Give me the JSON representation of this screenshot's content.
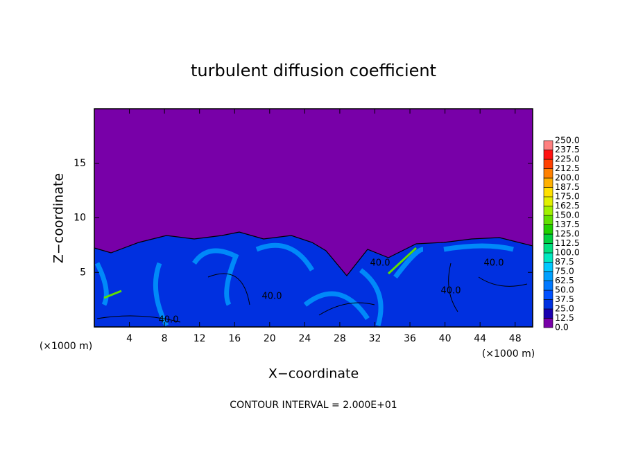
{
  "chart_data": {
    "type": "contour",
    "title": "turbulent diffusion coefficient",
    "x_label": "X−coordinate",
    "y_label": "Z−coordinate",
    "y_unit": "(×1000 m)",
    "x_unit": "(×1000 m)",
    "footnote": "CONTOUR INTERVAL = 2.000E+01",
    "contour_labels": [
      "40.0",
      "40.0",
      "40.0",
      "40.0",
      "40.0"
    ],
    "xlim": [
      0,
      50
    ],
    "xticks": [
      4,
      8,
      12,
      16,
      20,
      24,
      28,
      32,
      36,
      40,
      44,
      48
    ],
    "ylim": [
      0,
      20
    ],
    "yticks": [
      5,
      10,
      15
    ],
    "levels": [
      {
        "value": 0,
        "label": "0.0"
      },
      {
        "value": 12.5,
        "label": "12.5"
      },
      {
        "value": 25,
        "label": "25.0"
      },
      {
        "value": 37.5,
        "label": "37.5"
      },
      {
        "value": 50,
        "label": "50.0"
      },
      {
        "value": 62.5,
        "label": "62.5"
      },
      {
        "value": 75,
        "label": "75.0"
      },
      {
        "value": 87.5,
        "label": "87.5"
      },
      {
        "value": 100,
        "label": "100.0"
      },
      {
        "value": 112.5,
        "label": "112.5"
      },
      {
        "value": 125,
        "label": "125.0"
      },
      {
        "value": 137.5,
        "label": "137.5"
      },
      {
        "value": 150,
        "label": "150.0"
      },
      {
        "value": 162.5,
        "label": "162.5"
      },
      {
        "value": 175,
        "label": "175.0"
      },
      {
        "value": 187.5,
        "label": "187.5"
      },
      {
        "value": 200,
        "label": "200.0"
      },
      {
        "value": 212.5,
        "label": "212.5"
      },
      {
        "value": 225,
        "label": "225.0"
      },
      {
        "value": 237.5,
        "label": "237.5"
      },
      {
        "value": 250,
        "label": "250.0"
      }
    ],
    "colors": [
      "#7800a8",
      "#1a00b0",
      "#0030e0",
      "#0050ff",
      "#0078ff",
      "#00a0ff",
      "#00c8ff",
      "#00e8c0",
      "#00e080",
      "#00d040",
      "#20d000",
      "#60e000",
      "#a0f000",
      "#e0f000",
      "#ffe000",
      "#ffb000",
      "#ff8000",
      "#ff4000",
      "#ff1010",
      "#ff8080"
    ]
  }
}
